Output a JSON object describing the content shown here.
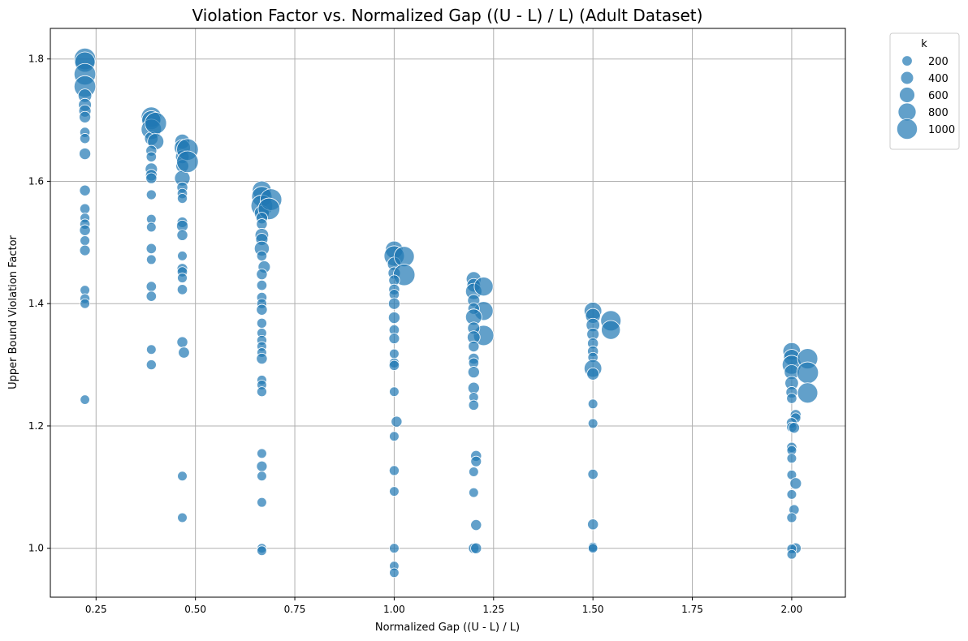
{
  "chart_data": {
    "type": "scatter",
    "title": "Violation Factor vs. Normalized Gap ((U - L) / L) (Adult Dataset)",
    "xlabel": "Normalized Gap ((U - L) / L)",
    "ylabel": "Upper Bound Violation Factor",
    "xlim": [
      0.135,
      2.135
    ],
    "ylim": [
      0.92,
      1.85
    ],
    "xticks": [
      "0.25",
      "0.50",
      "0.75",
      "1.00",
      "1.25",
      "1.50",
      "1.75",
      "2.00"
    ],
    "yticks": [
      "1.0",
      "1.2",
      "1.4",
      "1.6",
      "1.8"
    ],
    "grid": true,
    "color": "#1f77b4",
    "legend": {
      "title": "k",
      "placement": "upper-right-outside",
      "sizes": [
        200,
        400,
        600,
        800,
        1000
      ],
      "labels": [
        "200",
        "400",
        "600",
        "800",
        "1000"
      ]
    },
    "points": [
      {
        "x": 0.222,
        "y": 1.8,
        "k": 1000
      },
      {
        "x": 0.222,
        "y": 1.795,
        "k": 900
      },
      {
        "x": 0.222,
        "y": 1.775,
        "k": 1000
      },
      {
        "x": 0.222,
        "y": 1.755,
        "k": 1000
      },
      {
        "x": 0.222,
        "y": 1.74,
        "k": 400
      },
      {
        "x": 0.222,
        "y": 1.725,
        "k": 350
      },
      {
        "x": 0.222,
        "y": 1.715,
        "k": 300
      },
      {
        "x": 0.222,
        "y": 1.705,
        "k": 250
      },
      {
        "x": 0.222,
        "y": 1.68,
        "k": 150
      },
      {
        "x": 0.222,
        "y": 1.67,
        "k": 150
      },
      {
        "x": 0.222,
        "y": 1.645,
        "k": 250
      },
      {
        "x": 0.222,
        "y": 1.585,
        "k": 200
      },
      {
        "x": 0.222,
        "y": 1.555,
        "k": 150
      },
      {
        "x": 0.222,
        "y": 1.54,
        "k": 120
      },
      {
        "x": 0.222,
        "y": 1.53,
        "k": 150
      },
      {
        "x": 0.222,
        "y": 1.52,
        "k": 200
      },
      {
        "x": 0.222,
        "y": 1.503,
        "k": 120
      },
      {
        "x": 0.222,
        "y": 1.487,
        "k": 180
      },
      {
        "x": 0.222,
        "y": 1.422,
        "k": 110
      },
      {
        "x": 0.222,
        "y": 1.408,
        "k": 130
      },
      {
        "x": 0.222,
        "y": 1.4,
        "k": 110
      },
      {
        "x": 0.222,
        "y": 1.243,
        "k": 100
      },
      {
        "x": 0.389,
        "y": 1.705,
        "k": 900
      },
      {
        "x": 0.389,
        "y": 1.7,
        "k": 800
      },
      {
        "x": 0.389,
        "y": 1.685,
        "k": 900
      },
      {
        "x": 0.389,
        "y": 1.67,
        "k": 400
      },
      {
        "x": 0.4,
        "y": 1.695,
        "k": 1000
      },
      {
        "x": 0.4,
        "y": 1.665,
        "k": 600
      },
      {
        "x": 0.389,
        "y": 1.65,
        "k": 200
      },
      {
        "x": 0.389,
        "y": 1.64,
        "k": 150
      },
      {
        "x": 0.389,
        "y": 1.62,
        "k": 300
      },
      {
        "x": 0.389,
        "y": 1.61,
        "k": 250
      },
      {
        "x": 0.389,
        "y": 1.605,
        "k": 200
      },
      {
        "x": 0.389,
        "y": 1.578,
        "k": 130
      },
      {
        "x": 0.389,
        "y": 1.538,
        "k": 110
      },
      {
        "x": 0.389,
        "y": 1.525,
        "k": 110
      },
      {
        "x": 0.389,
        "y": 1.49,
        "k": 150
      },
      {
        "x": 0.389,
        "y": 1.472,
        "k": 110
      },
      {
        "x": 0.389,
        "y": 1.428,
        "k": 150
      },
      {
        "x": 0.389,
        "y": 1.412,
        "k": 150
      },
      {
        "x": 0.389,
        "y": 1.325,
        "k": 110
      },
      {
        "x": 0.389,
        "y": 1.3,
        "k": 130
      },
      {
        "x": 0.467,
        "y": 1.665,
        "k": 500
      },
      {
        "x": 0.467,
        "y": 1.655,
        "k": 600
      },
      {
        "x": 0.467,
        "y": 1.64,
        "k": 400
      },
      {
        "x": 0.467,
        "y": 1.625,
        "k": 350
      },
      {
        "x": 0.467,
        "y": 1.605,
        "k": 550
      },
      {
        "x": 0.48,
        "y": 1.652,
        "k": 1000
      },
      {
        "x": 0.48,
        "y": 1.632,
        "k": 1000
      },
      {
        "x": 0.467,
        "y": 1.59,
        "k": 200
      },
      {
        "x": 0.467,
        "y": 1.58,
        "k": 150
      },
      {
        "x": 0.467,
        "y": 1.572,
        "k": 130
      },
      {
        "x": 0.467,
        "y": 1.533,
        "k": 180
      },
      {
        "x": 0.467,
        "y": 1.527,
        "k": 250
      },
      {
        "x": 0.467,
        "y": 1.512,
        "k": 200
      },
      {
        "x": 0.467,
        "y": 1.478,
        "k": 110
      },
      {
        "x": 0.467,
        "y": 1.457,
        "k": 180
      },
      {
        "x": 0.467,
        "y": 1.452,
        "k": 150
      },
      {
        "x": 0.467,
        "y": 1.442,
        "k": 120
      },
      {
        "x": 0.467,
        "y": 1.423,
        "k": 150
      },
      {
        "x": 0.467,
        "y": 1.337,
        "k": 200
      },
      {
        "x": 0.471,
        "y": 1.32,
        "k": 220
      },
      {
        "x": 0.467,
        "y": 1.118,
        "k": 110
      },
      {
        "x": 0.467,
        "y": 1.05,
        "k": 110
      },
      {
        "x": 0.667,
        "y": 1.585,
        "k": 800
      },
      {
        "x": 0.667,
        "y": 1.575,
        "k": 900
      },
      {
        "x": 0.667,
        "y": 1.56,
        "k": 1000
      },
      {
        "x": 0.667,
        "y": 1.548,
        "k": 500
      },
      {
        "x": 0.69,
        "y": 1.57,
        "k": 1000
      },
      {
        "x": 0.685,
        "y": 1.555,
        "k": 1000
      },
      {
        "x": 0.667,
        "y": 1.54,
        "k": 250
      },
      {
        "x": 0.667,
        "y": 1.53,
        "k": 200
      },
      {
        "x": 0.667,
        "y": 1.512,
        "k": 400
      },
      {
        "x": 0.667,
        "y": 1.505,
        "k": 300
      },
      {
        "x": 0.667,
        "y": 1.49,
        "k": 500
      },
      {
        "x": 0.667,
        "y": 1.478,
        "k": 150
      },
      {
        "x": 0.673,
        "y": 1.46,
        "k": 300
      },
      {
        "x": 0.667,
        "y": 1.448,
        "k": 200
      },
      {
        "x": 0.667,
        "y": 1.43,
        "k": 150
      },
      {
        "x": 0.667,
        "y": 1.41,
        "k": 150
      },
      {
        "x": 0.667,
        "y": 1.4,
        "k": 130
      },
      {
        "x": 0.667,
        "y": 1.39,
        "k": 200
      },
      {
        "x": 0.667,
        "y": 1.368,
        "k": 130
      },
      {
        "x": 0.667,
        "y": 1.352,
        "k": 110
      },
      {
        "x": 0.667,
        "y": 1.34,
        "k": 130
      },
      {
        "x": 0.667,
        "y": 1.33,
        "k": 110
      },
      {
        "x": 0.667,
        "y": 1.32,
        "k": 110
      },
      {
        "x": 0.667,
        "y": 1.31,
        "k": 200
      },
      {
        "x": 0.667,
        "y": 1.275,
        "k": 110
      },
      {
        "x": 0.667,
        "y": 1.267,
        "k": 110
      },
      {
        "x": 0.667,
        "y": 1.256,
        "k": 130
      },
      {
        "x": 0.667,
        "y": 1.155,
        "k": 110
      },
      {
        "x": 0.667,
        "y": 1.134,
        "k": 180
      },
      {
        "x": 0.667,
        "y": 1.118,
        "k": 110
      },
      {
        "x": 0.667,
        "y": 1.075,
        "k": 110
      },
      {
        "x": 0.667,
        "y": 1.0,
        "k": 100
      },
      {
        "x": 0.667,
        "y": 0.996,
        "k": 110
      },
      {
        "x": 1.0,
        "y": 1.488,
        "k": 700
      },
      {
        "x": 1.0,
        "y": 1.478,
        "k": 900
      },
      {
        "x": 1.0,
        "y": 1.465,
        "k": 400
      },
      {
        "x": 1.0,
        "y": 1.45,
        "k": 300
      },
      {
        "x": 1.025,
        "y": 1.477,
        "k": 900
      },
      {
        "x": 1.025,
        "y": 1.447,
        "k": 1000
      },
      {
        "x": 1.0,
        "y": 1.438,
        "k": 200
      },
      {
        "x": 1.0,
        "y": 1.423,
        "k": 200
      },
      {
        "x": 1.0,
        "y": 1.415,
        "k": 150
      },
      {
        "x": 1.0,
        "y": 1.4,
        "k": 250
      },
      {
        "x": 1.0,
        "y": 1.377,
        "k": 250
      },
      {
        "x": 1.0,
        "y": 1.357,
        "k": 150
      },
      {
        "x": 1.0,
        "y": 1.343,
        "k": 180
      },
      {
        "x": 1.0,
        "y": 1.318,
        "k": 110
      },
      {
        "x": 1.0,
        "y": 1.303,
        "k": 130
      },
      {
        "x": 1.0,
        "y": 1.299,
        "k": 150
      },
      {
        "x": 1.0,
        "y": 1.256,
        "k": 110
      },
      {
        "x": 1.006,
        "y": 1.207,
        "k": 200
      },
      {
        "x": 1.0,
        "y": 1.183,
        "k": 110
      },
      {
        "x": 1.0,
        "y": 1.127,
        "k": 130
      },
      {
        "x": 1.0,
        "y": 1.093,
        "k": 110
      },
      {
        "x": 1.0,
        "y": 1.0,
        "k": 110
      },
      {
        "x": 1.0,
        "y": 0.971,
        "k": 100
      },
      {
        "x": 1.0,
        "y": 0.96,
        "k": 100
      },
      {
        "x": 1.2,
        "y": 1.44,
        "k": 500
      },
      {
        "x": 1.2,
        "y": 1.43,
        "k": 400
      },
      {
        "x": 1.2,
        "y": 1.42,
        "k": 600
      },
      {
        "x": 1.2,
        "y": 1.405,
        "k": 300
      },
      {
        "x": 1.225,
        "y": 1.428,
        "k": 800
      },
      {
        "x": 1.225,
        "y": 1.388,
        "k": 800
      },
      {
        "x": 1.225,
        "y": 1.348,
        "k": 900
      },
      {
        "x": 1.2,
        "y": 1.392,
        "k": 250
      },
      {
        "x": 1.2,
        "y": 1.378,
        "k": 600
      },
      {
        "x": 1.2,
        "y": 1.36,
        "k": 300
      },
      {
        "x": 1.2,
        "y": 1.345,
        "k": 350
      },
      {
        "x": 1.2,
        "y": 1.33,
        "k": 200
      },
      {
        "x": 1.2,
        "y": 1.31,
        "k": 200
      },
      {
        "x": 1.2,
        "y": 1.303,
        "k": 150
      },
      {
        "x": 1.2,
        "y": 1.288,
        "k": 250
      },
      {
        "x": 1.2,
        "y": 1.262,
        "k": 250
      },
      {
        "x": 1.2,
        "y": 1.247,
        "k": 110
      },
      {
        "x": 1.2,
        "y": 1.234,
        "k": 150
      },
      {
        "x": 1.206,
        "y": 1.151,
        "k": 200
      },
      {
        "x": 1.206,
        "y": 1.142,
        "k": 180
      },
      {
        "x": 1.2,
        "y": 1.125,
        "k": 110
      },
      {
        "x": 1.2,
        "y": 1.091,
        "k": 110
      },
      {
        "x": 1.206,
        "y": 1.038,
        "k": 200
      },
      {
        "x": 1.2,
        "y": 1.0,
        "k": 180
      },
      {
        "x": 1.206,
        "y": 1.0,
        "k": 200
      },
      {
        "x": 1.5,
        "y": 1.388,
        "k": 700
      },
      {
        "x": 1.5,
        "y": 1.38,
        "k": 500
      },
      {
        "x": 1.5,
        "y": 1.365,
        "k": 400
      },
      {
        "x": 1.5,
        "y": 1.35,
        "k": 300
      },
      {
        "x": 1.545,
        "y": 1.372,
        "k": 900
      },
      {
        "x": 1.545,
        "y": 1.357,
        "k": 800
      },
      {
        "x": 1.5,
        "y": 1.335,
        "k": 200
      },
      {
        "x": 1.5,
        "y": 1.322,
        "k": 200
      },
      {
        "x": 1.5,
        "y": 1.312,
        "k": 150
      },
      {
        "x": 1.5,
        "y": 1.294,
        "k": 700
      },
      {
        "x": 1.5,
        "y": 1.285,
        "k": 300
      },
      {
        "x": 1.5,
        "y": 1.236,
        "k": 110
      },
      {
        "x": 1.5,
        "y": 1.204,
        "k": 110
      },
      {
        "x": 1.5,
        "y": 1.121,
        "k": 150
      },
      {
        "x": 1.5,
        "y": 1.039,
        "k": 200
      },
      {
        "x": 1.5,
        "y": 1.002,
        "k": 110
      },
      {
        "x": 1.5,
        "y": 1.0,
        "k": 100
      },
      {
        "x": 2.0,
        "y": 1.322,
        "k": 700
      },
      {
        "x": 2.0,
        "y": 1.312,
        "k": 600
      },
      {
        "x": 2.0,
        "y": 1.3,
        "k": 800
      },
      {
        "x": 2.0,
        "y": 1.288,
        "k": 500
      },
      {
        "x": 2.0,
        "y": 1.27,
        "k": 400
      },
      {
        "x": 2.04,
        "y": 1.31,
        "k": 900
      },
      {
        "x": 2.04,
        "y": 1.287,
        "k": 1000
      },
      {
        "x": 2.04,
        "y": 1.254,
        "k": 900
      },
      {
        "x": 2.0,
        "y": 1.255,
        "k": 250
      },
      {
        "x": 2.0,
        "y": 1.245,
        "k": 150
      },
      {
        "x": 2.01,
        "y": 1.218,
        "k": 200
      },
      {
        "x": 2.01,
        "y": 1.213,
        "k": 150
      },
      {
        "x": 2.0,
        "y": 1.205,
        "k": 180
      },
      {
        "x": 2.0,
        "y": 1.198,
        "k": 150
      },
      {
        "x": 2.006,
        "y": 1.197,
        "k": 200
      },
      {
        "x": 2.0,
        "y": 1.165,
        "k": 150
      },
      {
        "x": 2.0,
        "y": 1.16,
        "k": 110
      },
      {
        "x": 2.0,
        "y": 1.147,
        "k": 110
      },
      {
        "x": 2.0,
        "y": 1.12,
        "k": 110
      },
      {
        "x": 2.01,
        "y": 1.106,
        "k": 250
      },
      {
        "x": 2.0,
        "y": 1.088,
        "k": 110
      },
      {
        "x": 2.006,
        "y": 1.063,
        "k": 150
      },
      {
        "x": 2.0,
        "y": 1.05,
        "k": 130
      },
      {
        "x": 2.01,
        "y": 1.0,
        "k": 200
      },
      {
        "x": 2.0,
        "y": 0.999,
        "k": 110
      },
      {
        "x": 2.0,
        "y": 0.99,
        "k": 100
      }
    ]
  }
}
